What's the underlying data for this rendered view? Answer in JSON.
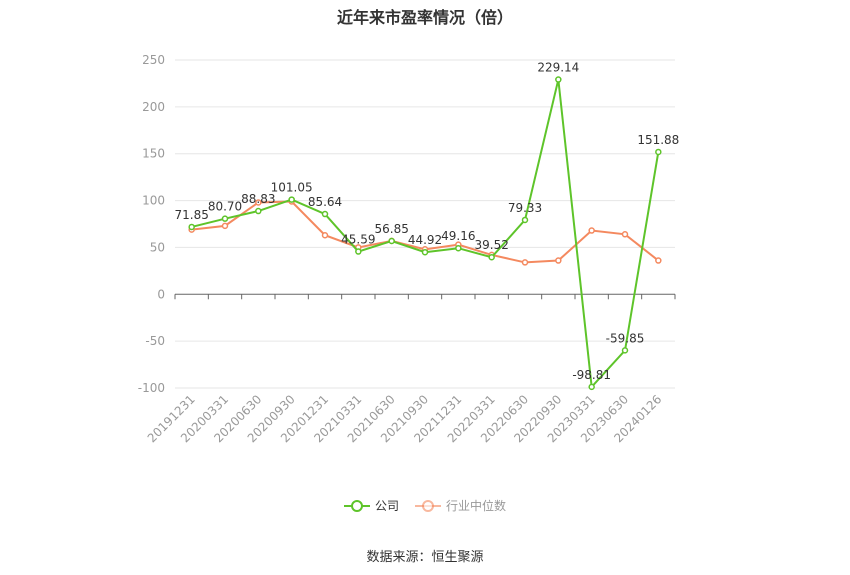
{
  "title": "近年来市盈率情况（倍）",
  "source": "数据来源：恒生聚源",
  "legend": [
    {
      "name": "公司",
      "color": "#5ec42a"
    },
    {
      "name": "行业中位数",
      "color": "#f4895f"
    }
  ],
  "chart_data": {
    "type": "line",
    "title": "近年来市盈率情况（倍）",
    "categories": [
      "20191231",
      "20200331",
      "20200630",
      "20200930",
      "20201231",
      "20210331",
      "20210630",
      "20210930",
      "20211231",
      "20220331",
      "20220630",
      "20220930",
      "20230331",
      "20230630",
      "20240126"
    ],
    "ylim": [
      -100,
      250
    ],
    "yticks": [
      -100,
      -50,
      0,
      50,
      100,
      150,
      200,
      250
    ],
    "grid": true,
    "legend_position": "bottom",
    "series": [
      {
        "name": "公司",
        "color": "#5ec42a",
        "labeled": true,
        "labels": [
          "71.85",
          "80.70",
          "88.83",
          "101.05",
          "85.64",
          "45.59",
          "56.85",
          "44.92",
          "49.16",
          "39.52",
          "79.33",
          "229.14",
          "-98.81",
          "-59.85",
          "151.88"
        ],
        "values": [
          71.85,
          80.7,
          88.83,
          101.05,
          85.64,
          45.59,
          56.85,
          44.92,
          49.16,
          39.52,
          79.33,
          229.14,
          -98.81,
          -59.85,
          151.88
        ]
      },
      {
        "name": "行业中位数",
        "color": "#f4895f",
        "labeled": false,
        "values": [
          69,
          73,
          98,
          99,
          63,
          50,
          57,
          48,
          53,
          42,
          34,
          36,
          68,
          64,
          36
        ]
      }
    ]
  }
}
